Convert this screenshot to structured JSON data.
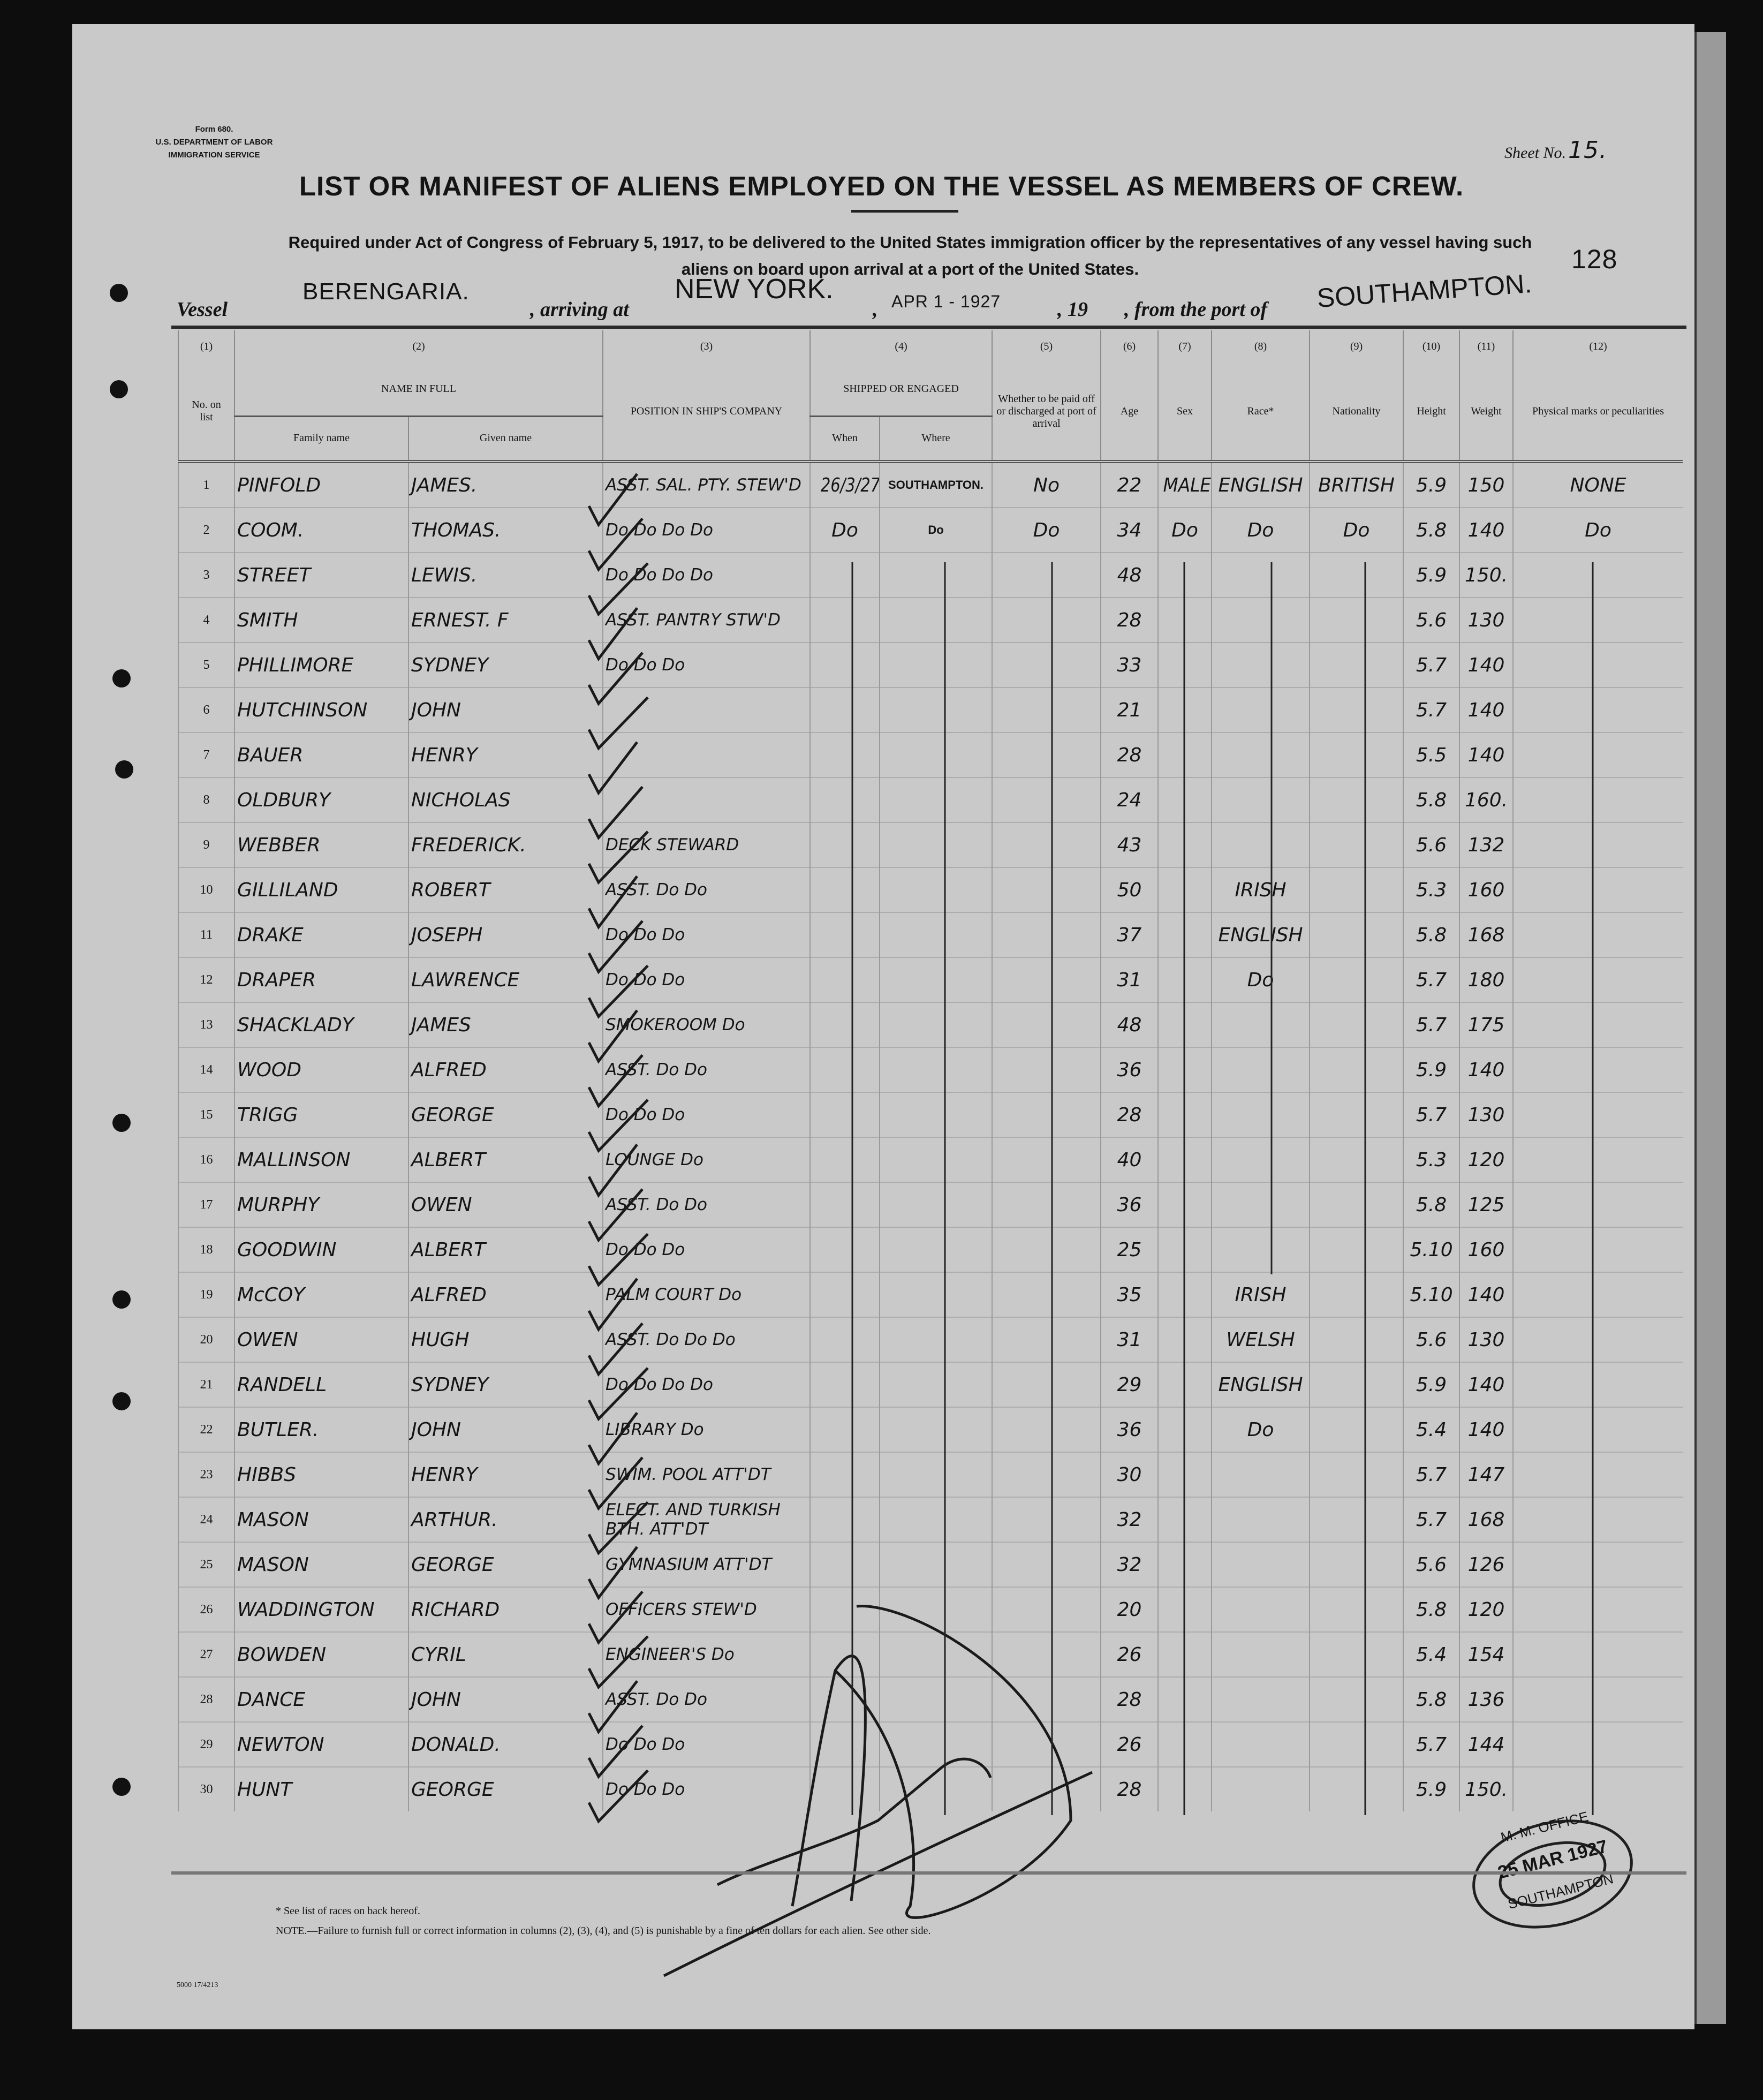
{
  "form": {
    "number": "Form 680.",
    "department": "U.S. DEPARTMENT OF LABOR",
    "service": "IMMIGRATION SERVICE",
    "sheet_label": "Sheet No.",
    "sheet_number": "15.",
    "title": "LIST OR MANIFEST OF ALIENS EMPLOYED ON THE VESSEL AS MEMBERS OF CREW.",
    "requirement_line1": "Required under Act of Congress of February 5, 1917, to be delivered to the United States immigration officer by the representatives of any vessel having such",
    "requirement_line2": "aliens on board upon arrival at a port of the United States.",
    "vessel_label": "Vessel",
    "vessel": "BERENGARIA.",
    "arriving_label": ", arriving at",
    "arriving_port": "NEW YORK.",
    "comma": ",",
    "date": "APR 1 - 1927",
    "year_label": ", 19",
    "from_label": ", from the port of",
    "from_port": "SOUTHAMPTON.",
    "annotation": "128"
  },
  "columns": {
    "c1_num": "(1)",
    "c2_num": "(2)",
    "c3_num": "(3)",
    "c4_num": "(4)",
    "c5_num": "(5)",
    "c6_num": "(6)",
    "c7_num": "(7)",
    "c8_num": "(8)",
    "c9_num": "(9)",
    "c10_num": "(10)",
    "c11_num": "(11)",
    "c12_num": "(12)",
    "no": "No. on list",
    "name_in_full": "NAME IN FULL",
    "family_name": "Family name",
    "given_name": "Given name",
    "position": "POSITION IN SHIP'S COMPANY",
    "shipped": "SHIPPED OR ENGAGED",
    "when": "When",
    "where": "Where",
    "paid_off": "Whether to be paid off or discharged at port of arrival",
    "age": "Age",
    "sex": "Sex",
    "race": "Race*",
    "nationality": "Nationality",
    "height": "Height",
    "weight": "Weight",
    "marks": "Physical marks or peculiarities"
  },
  "rows": [
    {
      "no": "1",
      "family": "PINFOLD",
      "given": "JAMES.",
      "position": "ASST. SAL. PTY. STEW'D",
      "when": "26/3/27.",
      "where": "SOUTHAMPTON.",
      "paid": "No",
      "age": "22",
      "sex": "MALE",
      "race": "ENGLISH",
      "nationality": "BRITISH",
      "height": "5.9",
      "weight": "150",
      "marks": "NONE"
    },
    {
      "no": "2",
      "family": "COOM.",
      "given": "THOMAS.",
      "position": "Do Do Do Do",
      "when": "Do",
      "where": "Do",
      "paid": "Do",
      "age": "34",
      "sex": "Do",
      "race": "Do",
      "nationality": "Do",
      "height": "5.8",
      "weight": "140",
      "marks": "Do"
    },
    {
      "no": "3",
      "family": "STREET",
      "given": "LEWIS.",
      "position": "Do Do Do Do",
      "age": "48",
      "height": "5.9",
      "weight": "150."
    },
    {
      "no": "4",
      "family": "SMITH",
      "given": "ERNEST. F",
      "position": "ASST. PANTRY STW'D",
      "age": "28",
      "height": "5.6",
      "weight": "130"
    },
    {
      "no": "5",
      "family": "PHILLIMORE",
      "given": "SYDNEY",
      "position": "Do Do Do",
      "age": "33",
      "height": "5.7",
      "weight": "140"
    },
    {
      "no": "6",
      "family": "HUTCHINSON",
      "given": "JOHN",
      "age": "21",
      "height": "5.7",
      "weight": "140"
    },
    {
      "no": "7",
      "family": "BAUER",
      "given": "HENRY",
      "age": "28",
      "height": "5.5",
      "weight": "140"
    },
    {
      "no": "8",
      "family": "OLDBURY",
      "given": "NICHOLAS",
      "age": "24",
      "height": "5.8",
      "weight": "160."
    },
    {
      "no": "9",
      "family": "WEBBER",
      "given": "FREDERICK.",
      "position": "DECK STEWARD",
      "age": "43",
      "height": "5.6",
      "weight": "132"
    },
    {
      "no": "10",
      "family": "GILLILAND",
      "given": "ROBERT",
      "position": "ASST. Do Do",
      "age": "50",
      "race": "IRISH",
      "height": "5.3",
      "weight": "160"
    },
    {
      "no": "11",
      "family": "DRAKE",
      "given": "JOSEPH",
      "position": "Do Do Do",
      "age": "37",
      "race": "ENGLISH",
      "height": "5.8",
      "weight": "168"
    },
    {
      "no": "12",
      "family": "DRAPER",
      "given": "LAWRENCE",
      "position": "Do Do Do",
      "age": "31",
      "race": "Do",
      "height": "5.7",
      "weight": "180"
    },
    {
      "no": "13",
      "family": "SHACKLADY",
      "given": "JAMES",
      "position": "SMOKEROOM Do",
      "age": "48",
      "height": "5.7",
      "weight": "175"
    },
    {
      "no": "14",
      "family": "WOOD",
      "given": "ALFRED",
      "position": "ASST. Do Do",
      "age": "36",
      "height": "5.9",
      "weight": "140"
    },
    {
      "no": "15",
      "family": "TRIGG",
      "given": "GEORGE",
      "position": "Do Do Do",
      "age": "28",
      "height": "5.7",
      "weight": "130"
    },
    {
      "no": "16",
      "family": "MALLINSON",
      "given": "ALBERT",
      "position": "LOUNGE Do",
      "age": "40",
      "height": "5.3",
      "weight": "120"
    },
    {
      "no": "17",
      "family": "MURPHY",
      "given": "OWEN",
      "position": "ASST. Do Do",
      "age": "36",
      "height": "5.8",
      "weight": "125"
    },
    {
      "no": "18",
      "family": "GOODWIN",
      "given": "ALBERT",
      "position": "Do Do Do",
      "age": "25",
      "height": "5.10",
      "weight": "160"
    },
    {
      "no": "19",
      "family": "McCOY",
      "given": "ALFRED",
      "position": "PALM COURT Do",
      "age": "35",
      "race": "IRISH",
      "height": "5.10",
      "weight": "140"
    },
    {
      "no": "20",
      "family": "OWEN",
      "given": "HUGH",
      "position": "ASST. Do Do Do",
      "age": "31",
      "race": "WELSH",
      "height": "5.6",
      "weight": "130"
    },
    {
      "no": "21",
      "family": "RANDELL",
      "given": "SYDNEY",
      "position": "Do Do Do Do",
      "age": "29",
      "race": "ENGLISH",
      "height": "5.9",
      "weight": "140"
    },
    {
      "no": "22",
      "family": "BUTLER.",
      "given": "JOHN",
      "position": "LIBRARY Do",
      "age": "36",
      "race": "Do",
      "height": "5.4",
      "weight": "140"
    },
    {
      "no": "23",
      "family": "HIBBS",
      "given": "HENRY",
      "position": "SWIM. POOL ATT'DT",
      "age": "30",
      "height": "5.7",
      "weight": "147"
    },
    {
      "no": "24",
      "family": "MASON",
      "given": "ARTHUR.",
      "position": "ELECT. AND TURKISH BTH. ATT'DT",
      "age": "32",
      "height": "5.7",
      "weight": "168"
    },
    {
      "no": "25",
      "family": "MASON",
      "given": "GEORGE",
      "position": "GYMNASIUM ATT'DT",
      "age": "32",
      "height": "5.6",
      "weight": "126"
    },
    {
      "no": "26",
      "family": "WADDINGTON",
      "given": "RICHARD",
      "position": "OFFICERS STEW'D",
      "age": "20",
      "height": "5.8",
      "weight": "120"
    },
    {
      "no": "27",
      "family": "BOWDEN",
      "given": "CYRIL",
      "position": "ENGINEER'S Do",
      "age": "26",
      "height": "5.4",
      "weight": "154"
    },
    {
      "no": "28",
      "family": "DANCE",
      "given": "JOHN",
      "position": "ASST. Do Do",
      "age": "28",
      "height": "5.8",
      "weight": "136"
    },
    {
      "no": "29",
      "family": "NEWTON",
      "given": "DONALD.",
      "position": "Do Do Do",
      "age": "26",
      "height": "5.7",
      "weight": "144"
    },
    {
      "no": "30",
      "family": "HUNT",
      "given": "GEORGE",
      "position": "Do Do Do",
      "age": "28",
      "height": "5.9",
      "weight": "150."
    }
  ],
  "footer": {
    "races_note": "* See list of races on back hereof.",
    "note": "NOTE.—Failure to furnish full or correct information in columns (2), (3), (4), and (5) is punishable by a fine of ten dollars for each alien. See other side.",
    "print_code": "5000 17/4213"
  },
  "stamp": {
    "top": "M. M. OFFICE",
    "date": "25 MAR 1927",
    "bottom": "SOUTHAMPTON"
  },
  "colors": {
    "paper": "#c9c9c9",
    "ink": "#141414",
    "background": "#0d0d0d"
  }
}
